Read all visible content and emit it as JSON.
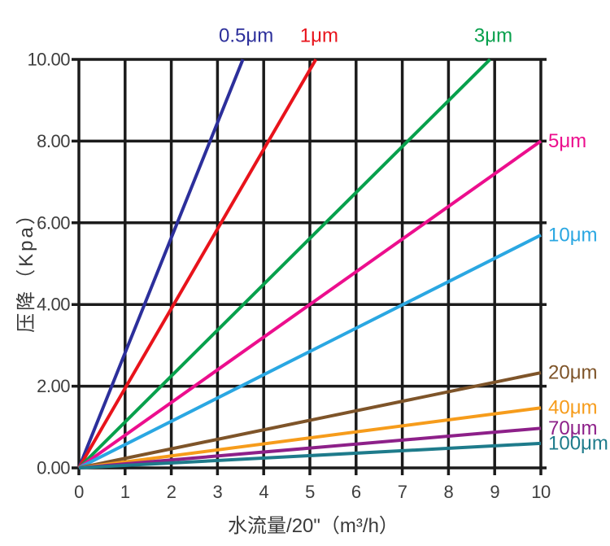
{
  "figure": {
    "background": "#ffffff"
  },
  "chart_data": {
    "type": "line",
    "title": "",
    "xlabel": "水流量/20\"（m³/h）",
    "ylabel": "压降（Kpa）",
    "xlim": [
      0,
      10
    ],
    "ylim": [
      0,
      10
    ],
    "grid": "on",
    "legend_position": "line-end-labels",
    "axis_color": "#1b1b1b",
    "tick_label_color": "#3e3e3e",
    "x_ticks": [
      0,
      1,
      2,
      3,
      4,
      5,
      6,
      7,
      8,
      9,
      10
    ],
    "x_tick_labels": [
      "0",
      "1",
      "2",
      "3",
      "4",
      "5",
      "6",
      "7",
      "8",
      "9",
      "10"
    ],
    "y_ticks": [
      0,
      2,
      4,
      6,
      8,
      10
    ],
    "y_tick_labels": [
      "0.00",
      "2.00",
      "4.00",
      "6.00",
      "8.00",
      "10.00"
    ],
    "series": [
      {
        "name": "0.5μm",
        "color": "#2c2f9b",
        "points": [
          [
            0,
            0
          ],
          [
            3.55,
            10
          ]
        ],
        "label_placement": "top"
      },
      {
        "name": "1μm",
        "color": "#e8131b",
        "points": [
          [
            0,
            0
          ],
          [
            5.13,
            10
          ]
        ],
        "label_placement": "top"
      },
      {
        "name": "3μm",
        "color": "#07a04c",
        "points": [
          [
            0,
            0
          ],
          [
            8.9,
            10
          ]
        ],
        "label_placement": "top"
      },
      {
        "name": "5μm",
        "color": "#ec0e8d",
        "points": [
          [
            0,
            0
          ],
          [
            10,
            8.0
          ]
        ],
        "label_placement": "right"
      },
      {
        "name": "10μm",
        "color": "#2aa7e2",
        "points": [
          [
            0,
            0
          ],
          [
            10,
            5.7
          ]
        ],
        "label_placement": "right"
      },
      {
        "name": "20μm",
        "color": "#7e5429",
        "points": [
          [
            0,
            0
          ],
          [
            10,
            2.33
          ]
        ],
        "label_placement": "right"
      },
      {
        "name": "40μm",
        "color": "#f69c1b",
        "points": [
          [
            0,
            0
          ],
          [
            10,
            1.47
          ]
        ],
        "label_placement": "right"
      },
      {
        "name": "70μm",
        "color": "#8d2089",
        "points": [
          [
            0,
            0
          ],
          [
            10,
            0.97
          ]
        ],
        "label_placement": "right"
      },
      {
        "name": "100μm",
        "color": "#1e7b8b",
        "points": [
          [
            0,
            0
          ],
          [
            10,
            0.6
          ]
        ],
        "label_placement": "right"
      }
    ]
  }
}
